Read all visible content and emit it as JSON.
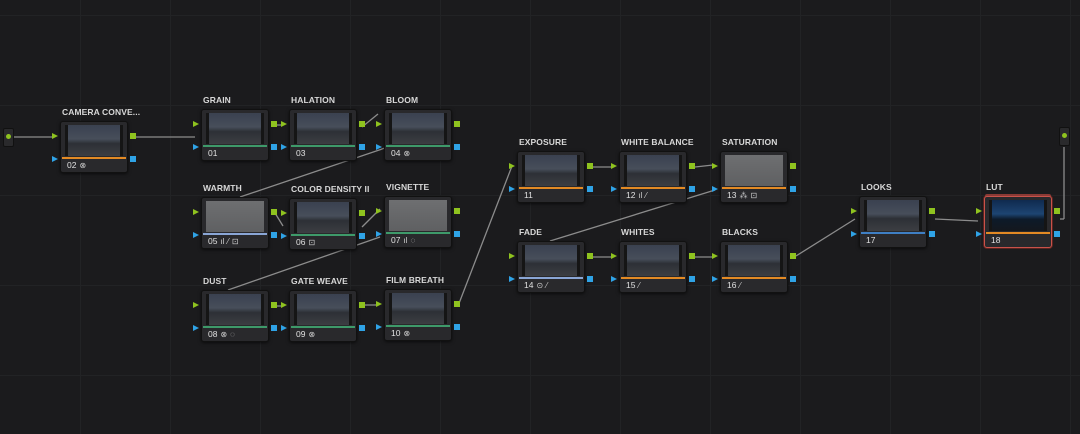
{
  "colors": {
    "orange": "#e38a24",
    "green": "#3e9a6a",
    "lightblue": "#8aa6d6",
    "blue": "#3f7fc4",
    "rgb_input": "#8fc31f",
    "key_input": "#2fa3e6",
    "selected_outline": "#c9524a"
  },
  "nodes": [
    {
      "id": "cam",
      "label": "CAMERA CONVE...",
      "number": "02",
      "icons": [
        {
          "name": "openfx-icon",
          "glyph": "⊗"
        }
      ],
      "bar": "orange",
      "thumb": "dark"
    },
    {
      "id": "grain",
      "label": "GRAIN",
      "number": "01",
      "icons": [],
      "bar": "green",
      "thumb": "dark"
    },
    {
      "id": "halation",
      "label": "HALATION",
      "number": "03",
      "icons": [],
      "bar": "green",
      "thumb": "dark"
    },
    {
      "id": "bloom",
      "label": "BLOOM",
      "number": "04",
      "icons": [
        {
          "name": "openfx-icon",
          "glyph": "⊗"
        }
      ],
      "bar": "green",
      "thumb": "dark"
    },
    {
      "id": "warmth",
      "label": "WARMTH",
      "number": "05",
      "icons": [
        {
          "name": "rgb-mixer-icon",
          "glyph": "ıl"
        },
        {
          "name": "curves-icon",
          "glyph": "⁄"
        },
        {
          "name": "sizing-icon",
          "glyph": "⊡"
        }
      ],
      "bar": "lightblue",
      "thumb": "gray"
    },
    {
      "id": "density",
      "label": "COLOR DENSITY II",
      "number": "06",
      "icons": [
        {
          "name": "sizing-icon",
          "glyph": "⊡"
        }
      ],
      "bar": "green",
      "thumb": "dark"
    },
    {
      "id": "vignette",
      "label": "VIGNETTE",
      "number": "07",
      "icons": [
        {
          "name": "rgb-mixer-icon",
          "glyph": "ıl"
        },
        {
          "name": "window-icon",
          "glyph": "◌"
        }
      ],
      "bar": "green",
      "thumb": "gray"
    },
    {
      "id": "dust",
      "label": "DUST",
      "number": "08",
      "icons": [
        {
          "name": "openfx-icon",
          "glyph": "⊗"
        },
        {
          "name": "window-icon",
          "glyph": "◌"
        }
      ],
      "bar": "green",
      "thumb": "dark"
    },
    {
      "id": "gate",
      "label": "GATE WEAVE",
      "number": "09",
      "icons": [
        {
          "name": "openfx-icon",
          "glyph": "⊗"
        }
      ],
      "bar": "green",
      "thumb": "dark"
    },
    {
      "id": "breath",
      "label": "FILM BREATH",
      "number": "10",
      "icons": [
        {
          "name": "openfx-icon",
          "glyph": "⊗"
        }
      ],
      "bar": "green",
      "thumb": "dark"
    },
    {
      "id": "exposure",
      "label": "EXPOSURE",
      "number": "11",
      "icons": [],
      "bar": "orange",
      "thumb": "dark"
    },
    {
      "id": "wb",
      "label": "WHITE BALANCE",
      "number": "12",
      "icons": [
        {
          "name": "rgb-mixer-icon",
          "glyph": "ıl"
        },
        {
          "name": "curves-icon",
          "glyph": "⁄"
        }
      ],
      "bar": "orange",
      "thumb": "dark"
    },
    {
      "id": "sat",
      "label": "SATURATION",
      "number": "13",
      "icons": [
        {
          "name": "color-warper-icon",
          "glyph": "⁂"
        },
        {
          "name": "sizing-icon",
          "glyph": "⊡"
        }
      ],
      "bar": "orange",
      "thumb": "gray"
    },
    {
      "id": "fade",
      "label": "FADE",
      "number": "14",
      "icons": [
        {
          "name": "circle-window-icon",
          "glyph": "⊙"
        },
        {
          "name": "curves-icon",
          "glyph": "⁄"
        }
      ],
      "bar": "lightblue",
      "thumb": "dark"
    },
    {
      "id": "whites",
      "label": "WHITES",
      "number": "15",
      "icons": [
        {
          "name": "curves-icon",
          "glyph": "⁄"
        }
      ],
      "bar": "orange",
      "thumb": "dark"
    },
    {
      "id": "blacks",
      "label": "BLACKS",
      "number": "16",
      "icons": [
        {
          "name": "curves-icon",
          "glyph": "⁄"
        }
      ],
      "bar": "orange",
      "thumb": "dark"
    },
    {
      "id": "looks",
      "label": "LOOKS",
      "number": "17",
      "icons": [],
      "bar": "blue",
      "thumb": "dark"
    },
    {
      "id": "lut",
      "label": "LUT",
      "number": "18",
      "icons": [],
      "bar": "orange",
      "thumb": "lut",
      "selected": true
    }
  ]
}
